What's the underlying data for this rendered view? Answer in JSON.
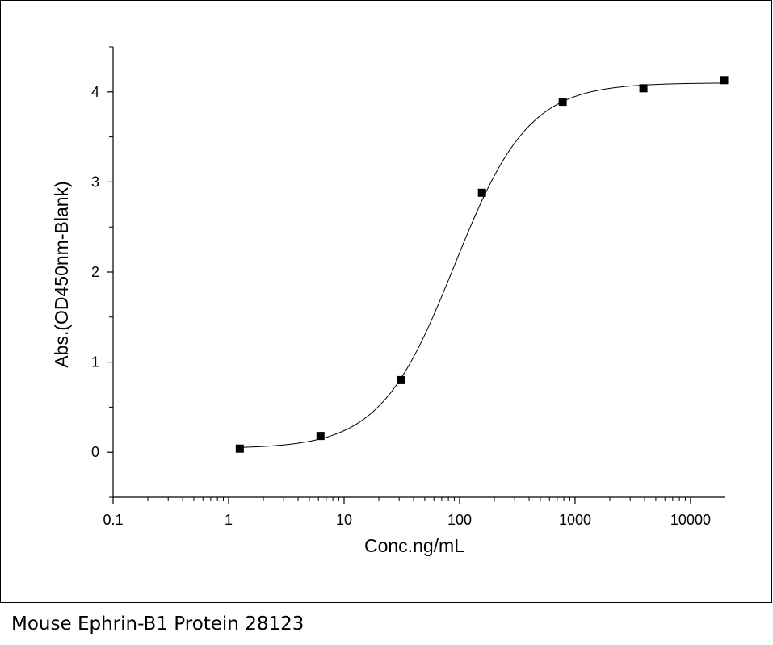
{
  "caption": "Mouse Ephrin-B1 Protein 28123",
  "chart_data": {
    "type": "scatter",
    "x_scale": "log",
    "xlabel": "Conc.ng/mL",
    "ylabel": "Abs.(OD450nm-Blank)",
    "xlim": [
      0.1,
      20000
    ],
    "ylim": [
      -0.5,
      4.5
    ],
    "x_ticks": [
      0.1,
      1,
      10,
      100,
      1000,
      10000
    ],
    "x_tick_labels": [
      "0.1",
      "1",
      "10",
      "100",
      "1000",
      "10000"
    ],
    "y_ticks": [
      0,
      1,
      2,
      3,
      4
    ],
    "y_tick_labels": [
      "0",
      "1",
      "2",
      "3",
      "4"
    ],
    "series": [
      {
        "marker": "square",
        "color": "#000000",
        "x": [
          1.25,
          6.25,
          31.25,
          156.25,
          781.25,
          3906.25,
          19531.25
        ],
        "y": [
          0.04,
          0.18,
          0.8,
          2.88,
          3.89,
          4.04,
          4.13
        ]
      }
    ],
    "fit_curve": {
      "model": "4PL",
      "bottom": 0.04,
      "top": 4.1,
      "ec50": 90,
      "hill": 1.35,
      "x_range": [
        1.25,
        19531.25
      ],
      "color": "#000000"
    },
    "grid": false,
    "legend": "none"
  }
}
